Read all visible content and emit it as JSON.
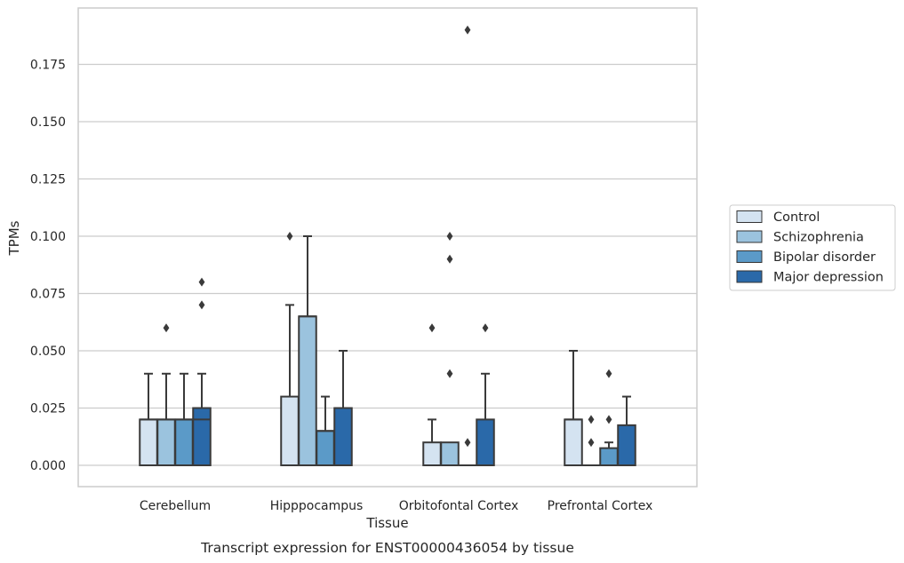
{
  "chart_data": {
    "type": "box",
    "xlabel": "Tissue",
    "ylabel": "TPMs",
    "caption": "Transcript expression for ENST00000436054 by tissue",
    "ylim": [
      -0.009,
      0.1975
    ],
    "yticks": [
      0.0,
      0.025,
      0.05,
      0.075,
      0.1,
      0.125,
      0.15,
      0.175
    ],
    "ytick_labels": [
      "0.000",
      "0.025",
      "0.050",
      "0.075",
      "0.100",
      "0.125",
      "0.150",
      "0.175"
    ],
    "grid": "horizontal",
    "legend_position": "right",
    "categories": [
      "Cerebellum",
      "Hipppocampus",
      "Orbitofontal Cortex",
      "Prefrontal Cortex"
    ],
    "series": [
      {
        "name": "Control",
        "color": "#d4e3f1",
        "boxes": [
          {
            "q1": 0.0,
            "median": 0.02,
            "q3": 0.02,
            "whisker_low": 0.0,
            "whisker_high": 0.04,
            "outliers": []
          },
          {
            "q1": 0.0,
            "median": 0.0,
            "q3": 0.03,
            "whisker_low": 0.0,
            "whisker_high": 0.07,
            "outliers": [
              0.1
            ]
          },
          {
            "q1": 0.0,
            "median": 0.0,
            "q3": 0.01,
            "whisker_low": 0.0,
            "whisker_high": 0.02,
            "outliers": [
              0.06
            ]
          },
          {
            "q1": 0.0,
            "median": 0.02,
            "q3": 0.02,
            "whisker_low": 0.0,
            "whisker_high": 0.05,
            "outliers": []
          }
        ]
      },
      {
        "name": "Schizophrenia",
        "color": "#9bc3de",
        "boxes": [
          {
            "q1": 0.0,
            "median": 0.02,
            "q3": 0.02,
            "whisker_low": 0.0,
            "whisker_high": 0.04,
            "outliers": [
              0.06
            ]
          },
          {
            "q1": 0.0,
            "median": 0.065,
            "q3": 0.065,
            "whisker_low": 0.0,
            "whisker_high": 0.1,
            "outliers": []
          },
          {
            "q1": 0.0,
            "median": 0.0,
            "q3": 0.01,
            "whisker_low": 0.0,
            "whisker_high": 0.01,
            "outliers": [
              0.04,
              0.09,
              0.1
            ]
          },
          {
            "q1": 0.0,
            "median": 0.0,
            "q3": 0.0,
            "whisker_low": 0.0,
            "whisker_high": 0.0,
            "outliers": [
              0.01,
              0.02
            ]
          }
        ]
      },
      {
        "name": "Bipolar disorder",
        "color": "#5b9ac8",
        "boxes": [
          {
            "q1": 0.0,
            "median": 0.02,
            "q3": 0.02,
            "whisker_low": 0.0,
            "whisker_high": 0.04,
            "outliers": []
          },
          {
            "q1": 0.0,
            "median": 0.015,
            "q3": 0.015,
            "whisker_low": 0.0,
            "whisker_high": 0.03,
            "outliers": []
          },
          {
            "q1": 0.0,
            "median": 0.0,
            "q3": 0.0,
            "whisker_low": 0.0,
            "whisker_high": 0.0,
            "outliers": [
              0.01,
              0.19
            ]
          },
          {
            "q1": 0.0,
            "median": 0.0,
            "q3": 0.0075,
            "whisker_low": 0.0,
            "whisker_high": 0.01,
            "outliers": [
              0.02,
              0.04
            ]
          }
        ]
      },
      {
        "name": "Major depression",
        "color": "#2a69a9",
        "boxes": [
          {
            "q1": 0.0,
            "median": 0.02,
            "q3": 0.025,
            "whisker_low": 0.0,
            "whisker_high": 0.04,
            "outliers": [
              0.07,
              0.08
            ]
          },
          {
            "q1": 0.0,
            "median": 0.0,
            "q3": 0.025,
            "whisker_low": 0.0,
            "whisker_high": 0.05,
            "outliers": []
          },
          {
            "q1": 0.0,
            "median": 0.0,
            "q3": 0.02,
            "whisker_low": 0.0,
            "whisker_high": 0.04,
            "outliers": [
              0.06
            ]
          },
          {
            "q1": 0.0,
            "median": 0.0,
            "q3": 0.0175,
            "whisker_low": 0.0,
            "whisker_high": 0.03,
            "outliers": []
          }
        ]
      }
    ]
  }
}
